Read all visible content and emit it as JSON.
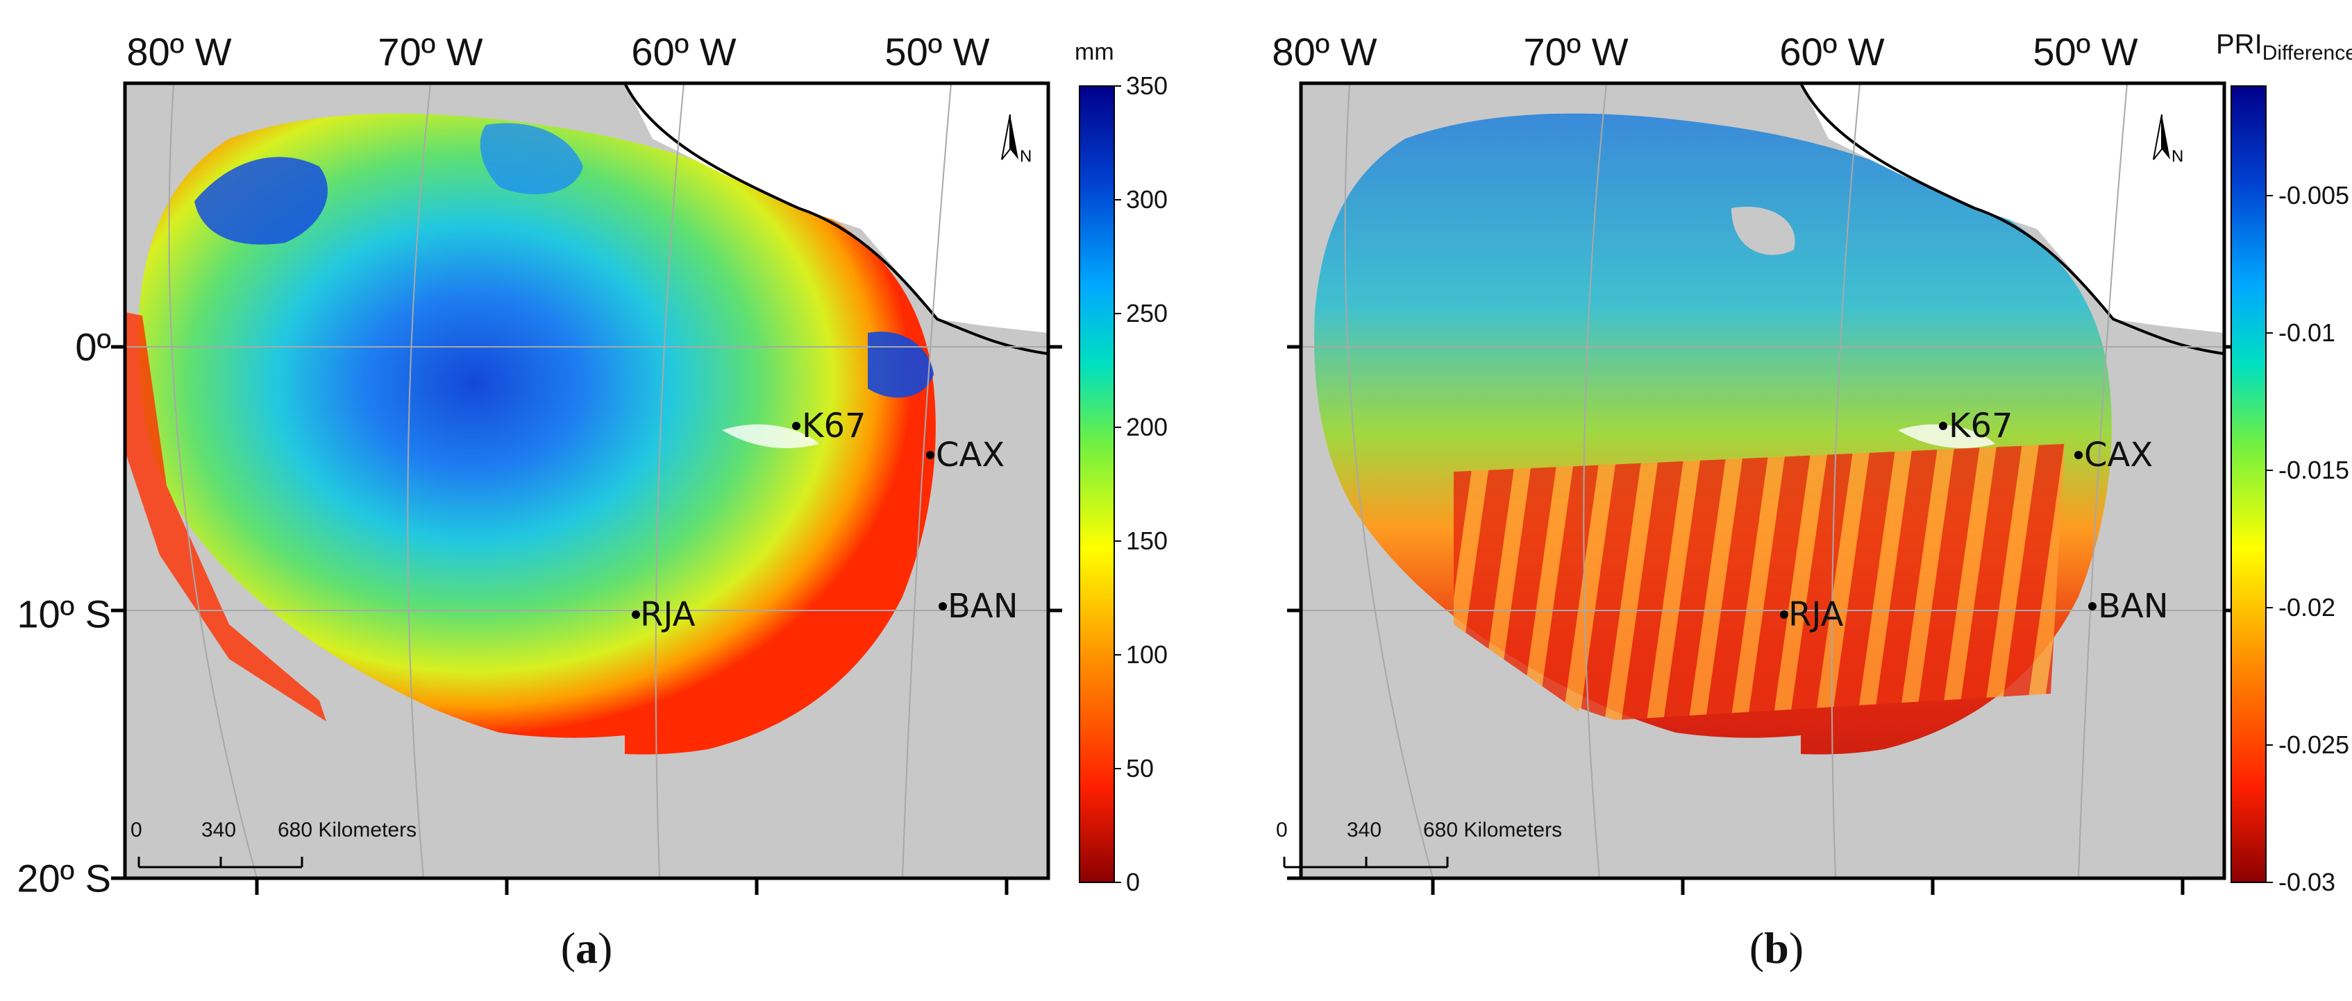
{
  "panels": [
    {
      "id": "a",
      "letter": "a",
      "unit": "mm",
      "colorbar_ticks": [
        "350",
        "300",
        "250",
        "200",
        "150",
        "100",
        "50",
        "0"
      ],
      "colorbar_values": [
        350,
        300,
        250,
        200,
        150,
        100,
        50,
        0
      ]
    },
    {
      "id": "b",
      "letter": "b",
      "unit_main": "PRI",
      "unit_sub": "Difference",
      "colorbar_ticks": [
        "-0.005",
        "-0.01",
        "-0.015",
        "-0.02",
        "-0.025",
        "-0.03"
      ],
      "colorbar_values": [
        -0.005,
        -0.01,
        -0.015,
        -0.02,
        -0.025,
        -0.03
      ]
    }
  ],
  "longitude_labels": [
    "80º W",
    "70º W",
    "60º W",
    "50º W"
  ],
  "latitude_labels": [
    "0º",
    "10º S",
    "20º S"
  ],
  "sites": [
    {
      "label": "K67"
    },
    {
      "label": "CAX"
    },
    {
      "label": "RJA"
    },
    {
      "label": "BAN"
    }
  ],
  "scale_bar": {
    "ticks": [
      "0",
      "340",
      "680 Kilometers"
    ]
  },
  "north_arrow": {
    "label": "N"
  },
  "colors": {
    "land": "#c8c8c8",
    "frame": "#000000",
    "colormap": [
      "#8b0000",
      "#ff2000",
      "#ff8c00",
      "#ffff00",
      "#7fff00",
      "#00e0c0",
      "#00a0ff",
      "#0040d0",
      "#00008b"
    ]
  }
}
